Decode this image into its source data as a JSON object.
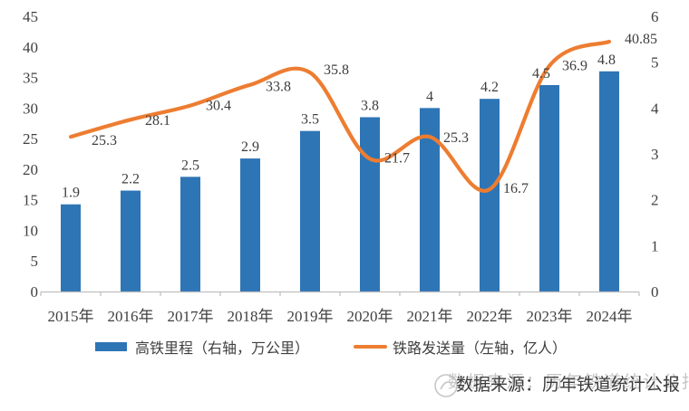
{
  "chart_data": {
    "type": "combo",
    "categories": [
      "2015年",
      "2016年",
      "2017年",
      "2018年",
      "2019年",
      "2020年",
      "2021年",
      "2022年",
      "2023年",
      "2024年"
    ],
    "series": [
      {
        "name": "高铁里程（右轴，万公里）",
        "type": "bar",
        "axis": "right",
        "color": "#2E75B6",
        "values": [
          1.9,
          2.2,
          2.5,
          2.9,
          3.5,
          3.8,
          4,
          4.2,
          4.5,
          4.8
        ],
        "labels": [
          "1.9",
          "2.2",
          "2.5",
          "2.9",
          "3.5",
          "3.8",
          "4",
          "4.2",
          "4.5",
          "4.8"
        ]
      },
      {
        "name": "铁路发送量（左轴，亿人）",
        "type": "line",
        "axis": "left",
        "color": "#ED7D31",
        "values": [
          25.3,
          28.1,
          30.4,
          33.8,
          35.8,
          21.7,
          25.3,
          16.7,
          36.9,
          40.85
        ],
        "labels": [
          "25.3",
          "28.1",
          "30.4",
          "33.8",
          "35.8",
          "21.7",
          "25.3",
          "16.7",
          "36.9",
          "40.85"
        ]
      }
    ],
    "axes": {
      "left": {
        "min": 0,
        "max": 45,
        "step": 5,
        "ticks": [
          "45",
          "40",
          "35",
          "30",
          "25",
          "20",
          "15",
          "10",
          "5",
          "0"
        ]
      },
      "right": {
        "min": 0,
        "max": 6,
        "step": 1,
        "ticks": [
          "6",
          "5",
          "4",
          "3",
          "2",
          "1",
          "0"
        ]
      }
    },
    "grid": false,
    "legend_position": "bottom",
    "title": ""
  },
  "legend": {
    "items": [
      {
        "label": "高铁里程（右轴，万公里）",
        "marker": "bar",
        "color": "#2E75B6"
      },
      {
        "label": "铁路发送量（左轴，亿人）",
        "marker": "line",
        "color": "#ED7D31"
      }
    ]
  },
  "caption": {
    "text": "数据来源：历年铁道统计公报"
  },
  "colors": {
    "bar": "#2E75B6",
    "line": "#ED7D31",
    "axis_line": "#BFBFBF",
    "tick_text": "#404040",
    "data_label": "#3d3d3d",
    "caption_text": "#3c3c3c",
    "watermark": "#c6c6c6"
  }
}
